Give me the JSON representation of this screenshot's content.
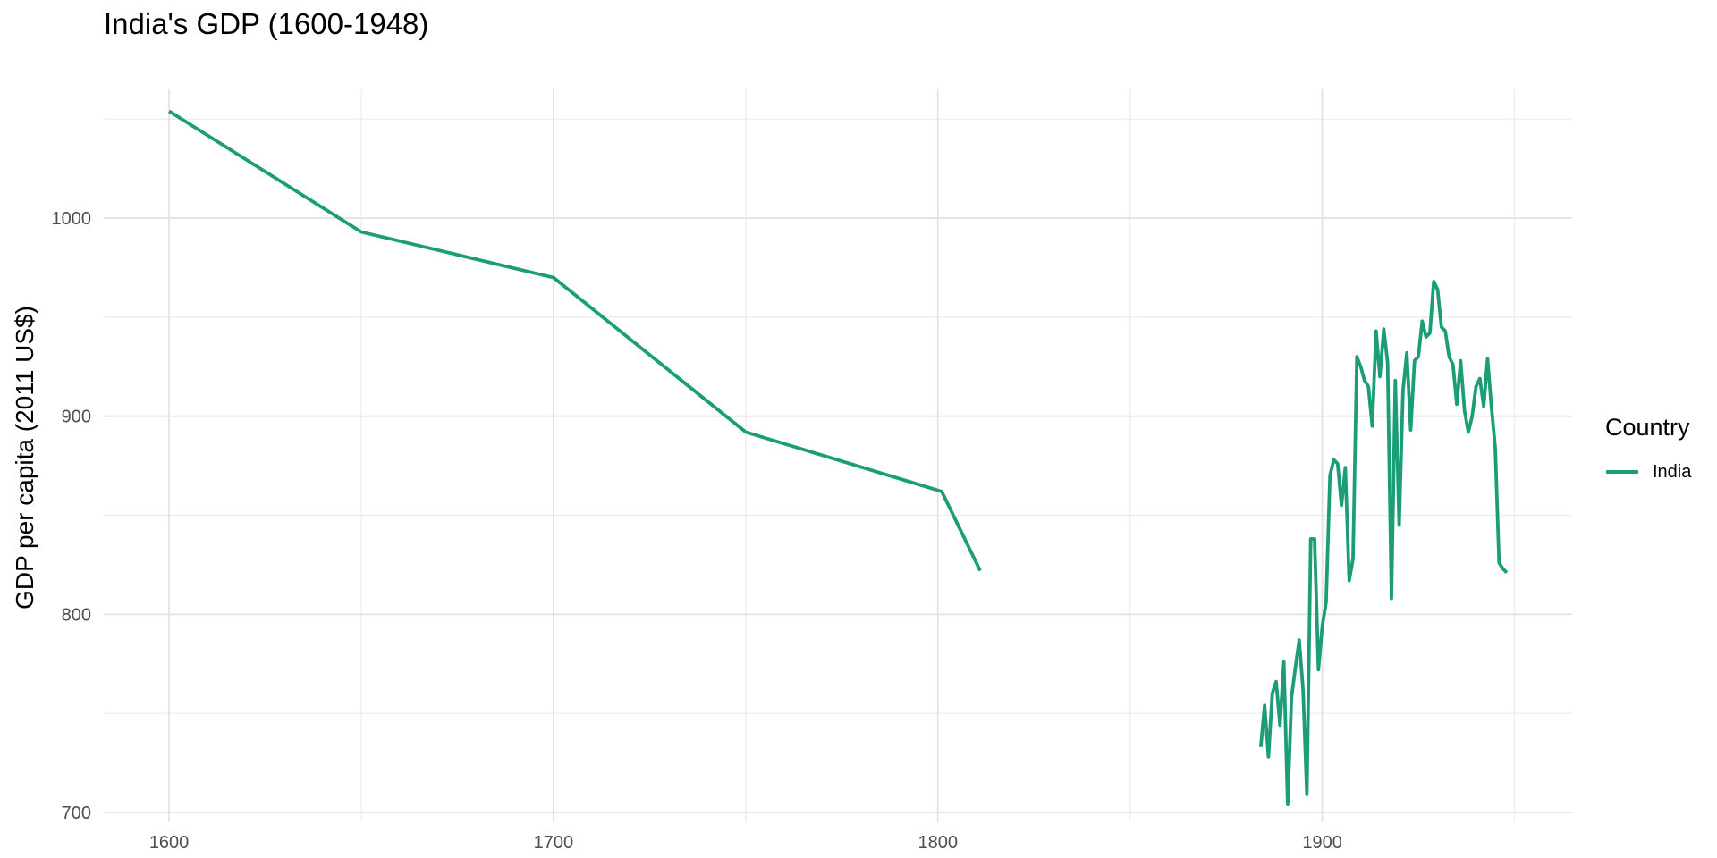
{
  "chart_data": {
    "type": "line",
    "title": "India's GDP (1600-1948)",
    "xlabel": "",
    "ylabel": "GDP per capita (2011 US$)",
    "xlim": [
      1583,
      1965
    ],
    "ylim": [
      695,
      1065
    ],
    "x_ticks": [
      1600,
      1700,
      1800,
      1900
    ],
    "y_ticks": [
      700,
      800,
      900,
      1000
    ],
    "x_tick_labels": [
      "1600",
      "1700",
      "1800",
      "1900"
    ],
    "y_tick_labels": [
      "700",
      "800",
      "900",
      "1000"
    ],
    "grid": true,
    "legend_title": "Country",
    "legend_position": "right",
    "series": [
      {
        "name": "India",
        "color": "#1b9e77",
        "segments": [
          [
            [
              1600,
              1054
            ],
            [
              1650,
              993
            ],
            [
              1700,
              970
            ],
            [
              1750,
              892
            ],
            [
              1801,
              862
            ],
            [
              1811,
              822
            ]
          ],
          [
            [
              1884,
              733
            ],
            [
              1885,
              754
            ],
            [
              1886,
              728
            ],
            [
              1887,
              760
            ],
            [
              1888,
              766
            ],
            [
              1889,
              744
            ],
            [
              1890,
              776
            ],
            [
              1891,
              704
            ],
            [
              1892,
              758
            ],
            [
              1893,
              773
            ],
            [
              1894,
              787
            ],
            [
              1895,
              762
            ],
            [
              1896,
              709
            ],
            [
              1897,
              838
            ],
            [
              1898,
              838
            ],
            [
              1899,
              772
            ],
            [
              1900,
              794
            ],
            [
              1901,
              806
            ],
            [
              1902,
              870
            ],
            [
              1903,
              878
            ],
            [
              1904,
              876
            ],
            [
              1905,
              855
            ],
            [
              1906,
              874
            ],
            [
              1907,
              817
            ],
            [
              1908,
              828
            ],
            [
              1909,
              930
            ],
            [
              1910,
              925
            ],
            [
              1911,
              918
            ],
            [
              1912,
              915
            ],
            [
              1913,
              895
            ],
            [
              1914,
              943
            ],
            [
              1915,
              920
            ],
            [
              1916,
              944
            ],
            [
              1917,
              927
            ],
            [
              1918,
              808
            ],
            [
              1919,
              918
            ],
            [
              1920,
              845
            ],
            [
              1921,
              913
            ],
            [
              1922,
              932
            ],
            [
              1923,
              893
            ],
            [
              1924,
              928
            ],
            [
              1925,
              930
            ],
            [
              1926,
              948
            ],
            [
              1927,
              940
            ],
            [
              1928,
              942
            ],
            [
              1929,
              968
            ],
            [
              1930,
              964
            ],
            [
              1931,
              945
            ],
            [
              1932,
              943
            ],
            [
              1933,
              930
            ],
            [
              1934,
              926
            ],
            [
              1935,
              906
            ],
            [
              1936,
              928
            ],
            [
              1937,
              903
            ],
            [
              1938,
              892
            ],
            [
              1939,
              900
            ],
            [
              1940,
              915
            ],
            [
              1941,
              919
            ],
            [
              1942,
              905
            ],
            [
              1943,
              929
            ],
            [
              1944,
              905
            ],
            [
              1945,
              884
            ],
            [
              1946,
              826
            ],
            [
              1947,
              823
            ],
            [
              1948,
              821
            ]
          ]
        ]
      }
    ]
  }
}
